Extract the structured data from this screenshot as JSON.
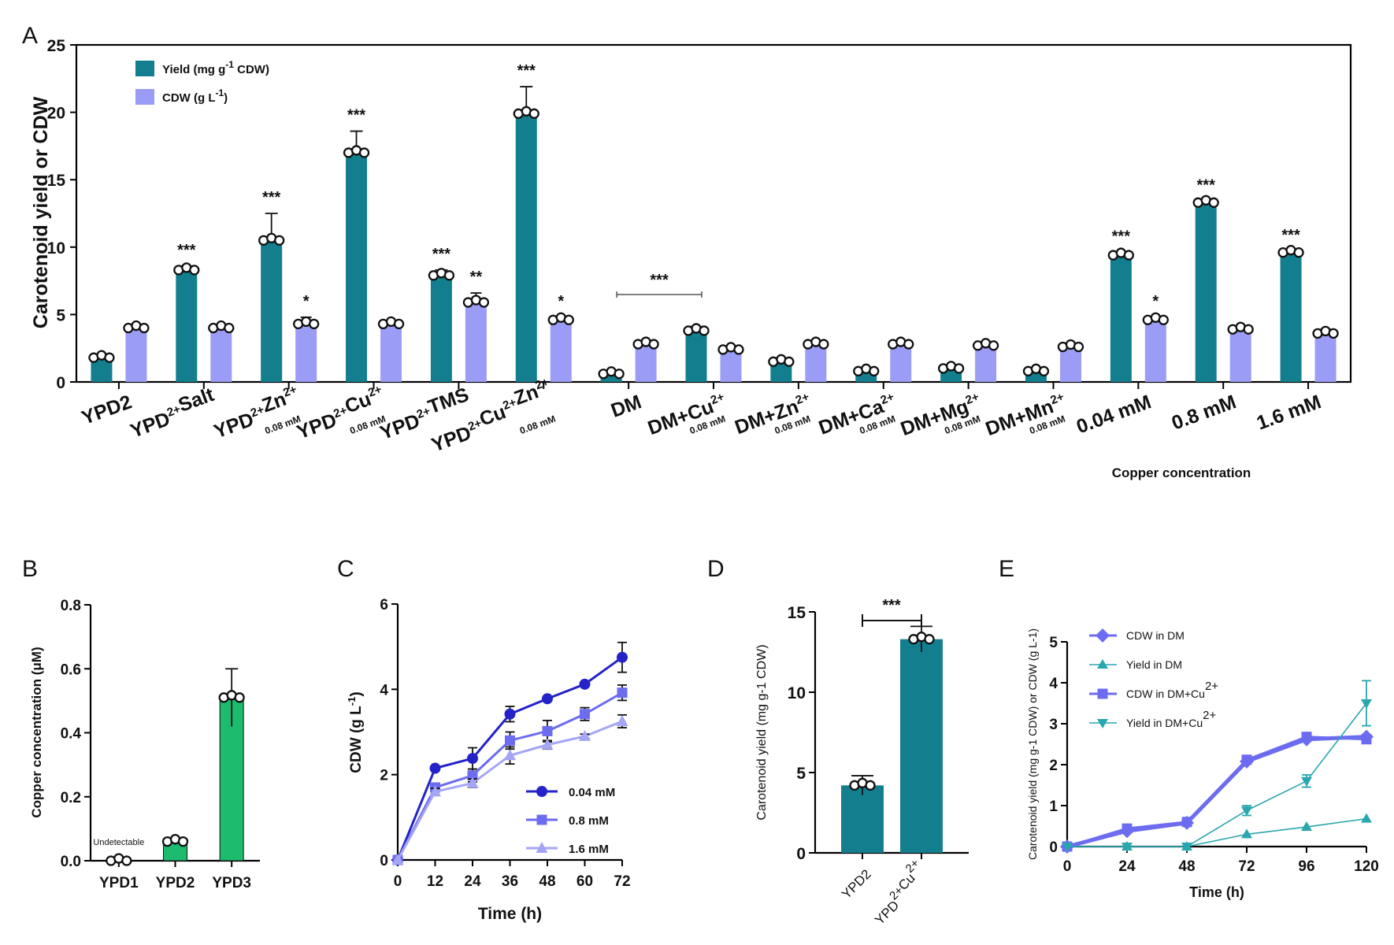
{
  "colors": {
    "yield": "#137f8e",
    "cdw": "#9b9cf5",
    "green": "#1dbb6e",
    "c1": "#2323c8",
    "c2": "#6c6cf0",
    "c3": "#a5a5f5",
    "eYield": "#2aa6ae"
  },
  "chart_data": [
    {
      "panel": "A",
      "type": "bar",
      "ylabel": "Carotenoid yield or CDW",
      "ylim": [
        0,
        25
      ],
      "yticks": [
        "0",
        "5",
        "10",
        "15",
        "20",
        "25"
      ],
      "legend": [
        "Yield (mg g-1 CDW)",
        "CDW (g L-1)"
      ],
      "groups": [
        {
          "label": "YPD2",
          "sub": "",
          "yield": 1.8,
          "cdw": 4.0,
          "yerr": 0,
          "cerr": 0.2,
          "ysig": "",
          "csig": ""
        },
        {
          "label": "YPD2+Salt",
          "sub": "",
          "yield": 8.3,
          "cdw": 4.0,
          "yerr": 0.3,
          "cerr": 0.2,
          "ysig": "***",
          "csig": ""
        },
        {
          "label": "YPD2+Zn2+",
          "sub": "0.08 mM",
          "yield": 10.5,
          "cdw": 4.3,
          "yerr": 2.0,
          "cerr": 0.5,
          "ysig": "***",
          "csig": "*"
        },
        {
          "label": "YPD2+Cu2+",
          "sub": "0.08 mM",
          "yield": 17.0,
          "cdw": 4.3,
          "yerr": 1.6,
          "cerr": 0.2,
          "ysig": "***",
          "csig": ""
        },
        {
          "label": "YPD2+TMS",
          "sub": "",
          "yield": 7.9,
          "cdw": 5.9,
          "yerr": 0.4,
          "cerr": 0.7,
          "ysig": "***",
          "csig": "**"
        },
        {
          "label": "YPD2+Cu2+Zn2+",
          "sub": "0.08 mM",
          "yield": 19.9,
          "cdw": 4.6,
          "yerr": 2.0,
          "cerr": 0.2,
          "ysig": "***",
          "csig": "*"
        },
        {
          "label": "DM",
          "sub": "",
          "yield": 0.6,
          "cdw": 2.8,
          "yerr": 0,
          "cerr": 0.2,
          "ysig": "",
          "csig": ""
        },
        {
          "label": "DM+Cu2+",
          "sub": "0.08 mM",
          "yield": 3.8,
          "cdw": 2.4,
          "yerr": 0.3,
          "cerr": 0.1,
          "ysig": "",
          "csig": ""
        },
        {
          "label": "DM+Zn2+",
          "sub": "0.08 mM",
          "yield": 1.5,
          "cdw": 2.8,
          "yerr": 0,
          "cerr": 0.1,
          "ysig": "",
          "csig": ""
        },
        {
          "label": "DM+Ca2+",
          "sub": "0.08 mM",
          "yield": 0.8,
          "cdw": 2.8,
          "yerr": 0,
          "cerr": 0.1,
          "ysig": "",
          "csig": ""
        },
        {
          "label": "DM+Mg2+",
          "sub": "0.08 mM",
          "yield": 1.0,
          "cdw": 2.7,
          "yerr": 0,
          "cerr": 0.1,
          "ysig": "",
          "csig": ""
        },
        {
          "label": "DM+Mn2+",
          "sub": "0.08 mM",
          "yield": 0.8,
          "cdw": 2.6,
          "yerr": 0,
          "cerr": 0.1,
          "ysig": "",
          "csig": ""
        },
        {
          "label": "0.04 mM",
          "sub": "",
          "yield": 9.4,
          "cdw": 4.6,
          "yerr": 0.2,
          "cerr": 0.2,
          "ysig": "***",
          "csig": "*"
        },
        {
          "label": "0.8 mM",
          "sub": "",
          "yield": 13.3,
          "cdw": 3.9,
          "yerr": 0.1,
          "cerr": 0.1,
          "ysig": "***",
          "csig": ""
        },
        {
          "label": "1.6 mM",
          "sub": "",
          "yield": 9.6,
          "cdw": 3.6,
          "yerr": 0.1,
          "cerr": 0.3,
          "ysig": "***",
          "csig": ""
        }
      ],
      "bracket": {
        "label": "***",
        "from": "DM",
        "to": "DM+Cu2+"
      },
      "annotation": "Copper concentration"
    },
    {
      "panel": "B",
      "type": "bar",
      "ylabel": "Copper concentration (μM)",
      "ylim": [
        0,
        0.8
      ],
      "yticks": [
        "0.0",
        "0.2",
        "0.4",
        "0.6",
        "0.8"
      ],
      "categories": [
        "YPD1",
        "YPD2",
        "YPD3"
      ],
      "values": [
        0.0,
        0.06,
        0.51
      ],
      "errors": [
        0,
        0.01,
        0.09
      ],
      "annotation": "Undetectable"
    },
    {
      "panel": "C",
      "type": "line",
      "xlabel": "Time (h)",
      "ylabel": "CDW (g L-1)",
      "xlim": [
        0,
        72
      ],
      "ylim": [
        0,
        6
      ],
      "xticks": [
        "0",
        "12",
        "24",
        "36",
        "48",
        "60",
        "72"
      ],
      "yticks": [
        "0",
        "2",
        "4",
        "6"
      ],
      "x": [
        0,
        12,
        24,
        36,
        48,
        60,
        72
      ],
      "series": [
        {
          "name": "0.04 mM",
          "values": [
            0,
            2.15,
            2.38,
            3.42,
            3.78,
            4.12,
            4.75
          ],
          "errors": [
            0,
            0.05,
            0.25,
            0.18,
            0.05,
            0.05,
            0.35
          ]
        },
        {
          "name": "0.8 mM",
          "values": [
            0,
            1.7,
            1.98,
            2.8,
            3.02,
            3.42,
            3.92
          ],
          "errors": [
            0,
            0.08,
            0.15,
            0.2,
            0.25,
            0.15,
            0.18
          ]
        },
        {
          "name": "1.6 mM",
          "values": [
            0,
            1.6,
            1.8,
            2.45,
            2.7,
            2.9,
            3.25
          ],
          "errors": [
            0,
            0.08,
            0.1,
            0.2,
            0.1,
            0.05,
            0.15
          ]
        }
      ]
    },
    {
      "panel": "D",
      "type": "bar",
      "ylabel": "Carotenoid yield (mg g-1 CDW)",
      "ylim": [
        0,
        15
      ],
      "yticks": [
        "0",
        "5",
        "10",
        "15"
      ],
      "categories": [
        "YPD2",
        "YPD2+Cu2+"
      ],
      "values": [
        4.2,
        13.3
      ],
      "errors": [
        0.6,
        0.8
      ],
      "bracket": "***"
    },
    {
      "panel": "E",
      "type": "line",
      "xlabel": "Time (h)",
      "ylabel": "Carotenoid yield (mg g-1 CDW) or CDW (g L-1)",
      "xlim": [
        0,
        120
      ],
      "ylim": [
        0,
        5
      ],
      "xticks": [
        "0",
        "24",
        "48",
        "72",
        "96",
        "120"
      ],
      "yticks": [
        "0",
        "1",
        "2",
        "3",
        "4",
        "5"
      ],
      "x": [
        0,
        24,
        48,
        72,
        96,
        120
      ],
      "series": [
        {
          "name": "CDW in DM",
          "values": [
            0,
            0.38,
            0.58,
            2.08,
            2.62,
            2.68
          ],
          "errors": [
            0,
            0,
            0,
            0,
            0,
            0
          ]
        },
        {
          "name": "Yield in DM",
          "values": [
            0,
            0,
            0,
            0.3,
            0.48,
            0.68
          ],
          "errors": [
            0,
            0,
            0,
            0,
            0,
            0
          ]
        },
        {
          "name": "CDW in DM+Cu2+",
          "values": [
            0,
            0.44,
            0.6,
            2.12,
            2.68,
            2.62
          ],
          "errors": [
            0,
            0.05,
            0,
            0.05,
            0,
            0.1
          ]
        },
        {
          "name": "Yield in DM+Cu2+",
          "values": [
            0,
            0,
            0,
            0.88,
            1.6,
            3.5
          ],
          "errors": [
            0,
            0,
            0,
            0.12,
            0.15,
            0.55
          ]
        }
      ]
    }
  ],
  "panels": {
    "A": "A",
    "B": "B",
    "C": "C",
    "D": "D",
    "E": "E"
  }
}
